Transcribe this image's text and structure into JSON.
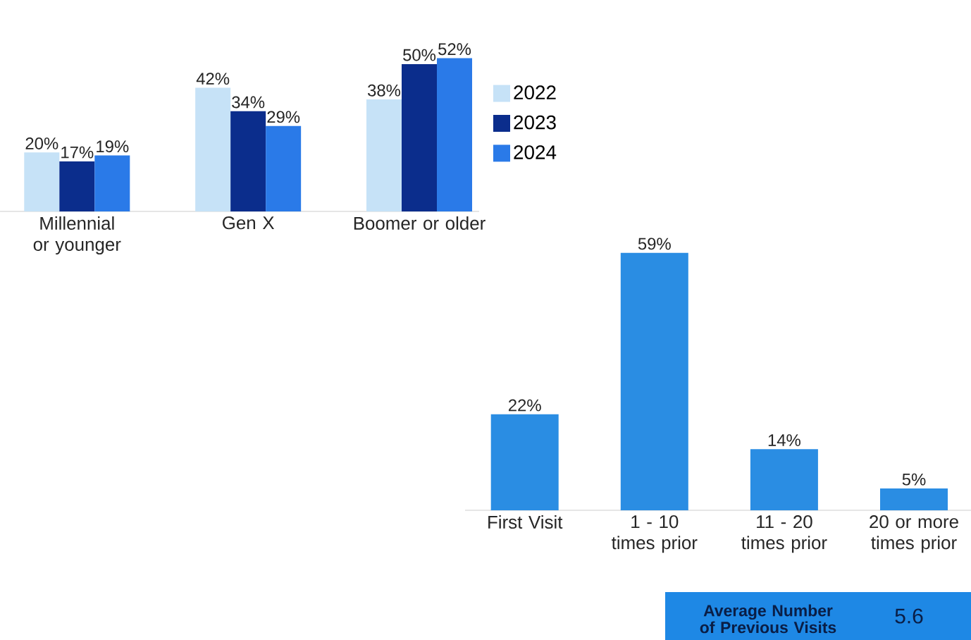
{
  "chart_data": [
    {
      "type": "bar",
      "categories": [
        "Millennial or younger",
        "Gen X",
        "Boomer or older"
      ],
      "legend": "right",
      "series": [
        {
          "name": "2022",
          "color": "#c6e2f7",
          "values": [
            20,
            42,
            38
          ],
          "value_labels": [
            "20%",
            "42%",
            "38%"
          ]
        },
        {
          "name": "2023",
          "color": "#0b2d8c",
          "values": [
            17,
            34,
            50
          ],
          "value_labels": [
            "17%",
            "34%",
            "50%"
          ]
        },
        {
          "name": "2024",
          "color": "#2a7ae8",
          "values": [
            19,
            29,
            52
          ],
          "value_labels": [
            "19%",
            "29%",
            "52%"
          ]
        }
      ]
    },
    {
      "type": "bar",
      "categories": [
        "First Visit",
        "1 - 10 times prior",
        "11 - 20 times prior",
        "20 or more times prior"
      ],
      "series": [
        {
          "color": "#2a8de3",
          "values": [
            22,
            59,
            14,
            5
          ],
          "value_labels": [
            "22%",
            "59%",
            "14%",
            "5%"
          ]
        }
      ]
    },
    {
      "type": "other",
      "title": "Average Number of Previous Visits",
      "annotations": [
        "5.6"
      ]
    }
  ]
}
